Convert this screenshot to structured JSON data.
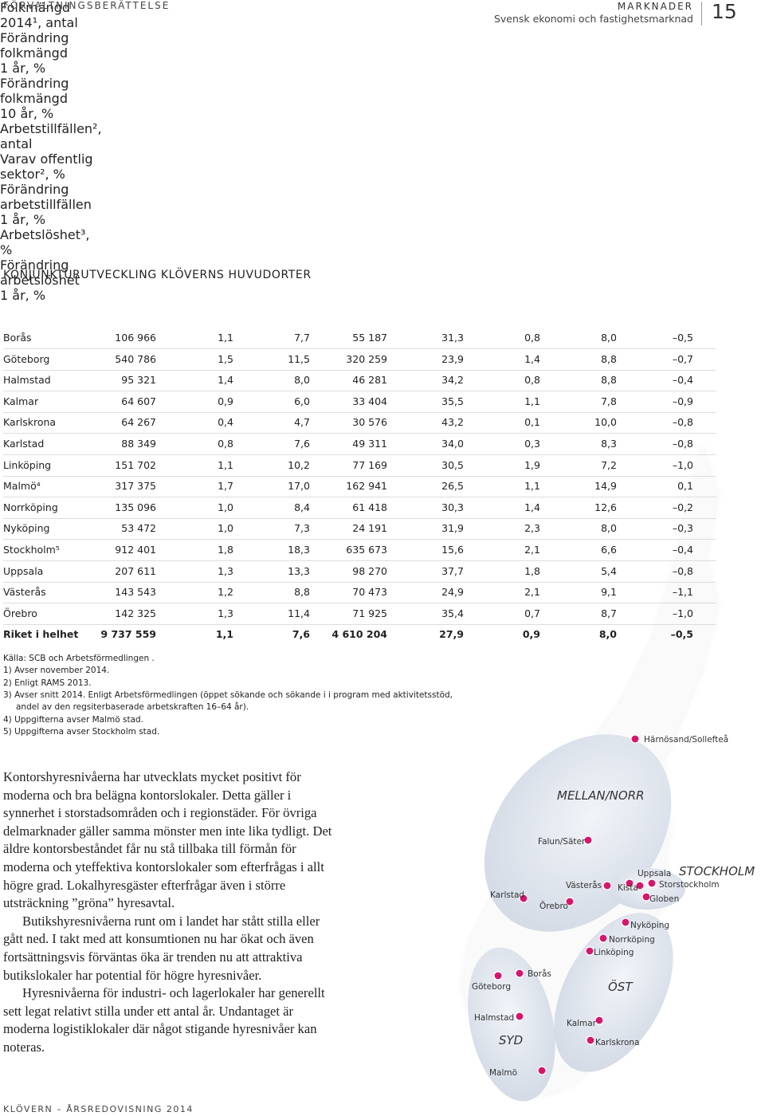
{
  "header": {
    "section": "FÖRVALTNINGSBERÄTTELSE",
    "title": "MARKNADER",
    "subtitle": "Svensk ekonomi och fastighetsmarknad",
    "page": "15"
  },
  "table": {
    "title": "KONJUNKTURUTVECKLING KLÖVERNS HUVUDORTER",
    "headers": [
      [
        "Folkmängd",
        "2014¹, antal"
      ],
      [
        "Förändring",
        "folkmängd",
        "1 år, %"
      ],
      [
        "Förändring",
        "folkmängd",
        "10 år, %"
      ],
      [
        "Arbetstillfällen²,",
        "antal"
      ],
      [
        "Varav offentlig",
        "sektor², %"
      ],
      [
        "Förändring",
        "arbetstillfällen",
        "1 år, %"
      ],
      [
        "Arbetslöshet³,",
        "%"
      ],
      [
        "Förändring",
        "arbetslöshet",
        "1 år, %"
      ]
    ],
    "rows": [
      [
        "Borås",
        "106 966",
        "1,1",
        "7,7",
        "55 187",
        "31,3",
        "0,8",
        "8,0",
        "–0,5"
      ],
      [
        "Göteborg",
        "540 786",
        "1,5",
        "11,5",
        "320 259",
        "23,9",
        "1,4",
        "8,8",
        "–0,7"
      ],
      [
        "Halmstad",
        "95 321",
        "1,4",
        "8,0",
        "46 281",
        "34,2",
        "0,8",
        "8,8",
        "–0,4"
      ],
      [
        "Kalmar",
        "64 607",
        "0,9",
        "6,0",
        "33 404",
        "35,5",
        "1,1",
        "7,8",
        "–0,9"
      ],
      [
        "Karlskrona",
        "64 267",
        "0,4",
        "4,7",
        "30 576",
        "43,2",
        "0,1",
        "10,0",
        "–0,8"
      ],
      [
        "Karlstad",
        "88 349",
        "0,8",
        "7,6",
        "49 311",
        "34,0",
        "0,3",
        "8,3",
        "–0,8"
      ],
      [
        "Linköping",
        "151 702",
        "1,1",
        "10,2",
        "77 169",
        "30,5",
        "1,9",
        "7,2",
        "–1,0"
      ],
      [
        "Malmö⁴",
        "317 375",
        "1,7",
        "17,0",
        "162 941",
        "26,5",
        "1,1",
        "14,9",
        "0,1"
      ],
      [
        "Norrköping",
        "135 096",
        "1,0",
        "8,4",
        "61 418",
        "30,3",
        "1,4",
        "12,6",
        "–0,2"
      ],
      [
        "Nyköping",
        "53 472",
        "1,0",
        "7,3",
        "24 191",
        "31,9",
        "2,3",
        "8,0",
        "–0,3"
      ],
      [
        "Stockholm⁵",
        "912 401",
        "1,8",
        "18,3",
        "635 673",
        "15,6",
        "2,1",
        "6,6",
        "–0,4"
      ],
      [
        "Uppsala",
        "207 611",
        "1,3",
        "13,3",
        "98 270",
        "37,7",
        "1,8",
        "5,4",
        "–0,8"
      ],
      [
        "Västerås",
        "143 543",
        "1,2",
        "8,8",
        "70 473",
        "24,9",
        "2,1",
        "9,1",
        "–1,1"
      ],
      [
        "Örebro",
        "142 325",
        "1,3",
        "11,4",
        "71 925",
        "35,4",
        "0,7",
        "8,7",
        "–1,0"
      ],
      [
        "Riket i helhet",
        "9 737 559",
        "1,1",
        "7,6",
        "4 610 204",
        "27,9",
        "0,9",
        "8,0",
        "–0,5"
      ]
    ]
  },
  "footnotes": [
    "Källa: SCB och Arbetsförmedlingen .",
    "1) Avser november 2014.",
    "2) Enligt RAMS 2013.",
    "3) Avser snitt 2014. Enligt Arbetsförmedlingen (öppet sökande och sökande i i program med aktivitetsstöd,",
    "andel av den regsiterbaserade arbetskraften 16–64 år).",
    "4) Uppgifterna avser Malmö stad.",
    "5) Uppgifterna avser Stockholm stad."
  ],
  "body": [
    "Kontorshyresnivåerna har utvecklats mycket positivt för moderna och bra belägna kontorslokaler. Detta gäller i synnerhet i storstadsområden och i regionstäder. För övriga delmarknader gäller samma mönster men inte lika tydligt. Det äldre kontorsbeståndet får nu stå tillbaka till förmån för moderna och yteffektiva kontorslokaler som efterfrågas i allt högre grad. Lokalhyresgäster efterfrågar även i större utsträckning ”gröna” hyresavtal.",
    "Butikshyresnivåerna runt om i landet har stått stilla eller gått ned. I takt med att konsumtionen nu har ökat och även fortsättningsvis förväntas öka är trenden nu att attraktiva butikslokaler har potential för högre hyresnivåer.",
    "Hyresnivåerna för industri- och lagerlokaler har generellt sett legat relativt stilla under ett antal år. Undantaget är moderna logistiklokaler där något stigande hyresnivåer kan noteras."
  ],
  "map": {
    "regions": [
      "MELLAN/NORR",
      "STOCKHOLM",
      "ÖST",
      "SYD"
    ],
    "cities": [
      "Härnösand/Sollefteå",
      "Falun/Säter",
      "Uppsala",
      "Storstockholm",
      "Kista",
      "Globen",
      "Västerås",
      "Örebro",
      "Karlstad",
      "Nyköping",
      "Norrköping",
      "Linköping",
      "Borås",
      "Göteborg",
      "Halmstad",
      "Kalmar",
      "Karlskrona",
      "Malmö"
    ]
  },
  "footer": "KLÖVERN – ÅRSREDOVISNING 2014"
}
